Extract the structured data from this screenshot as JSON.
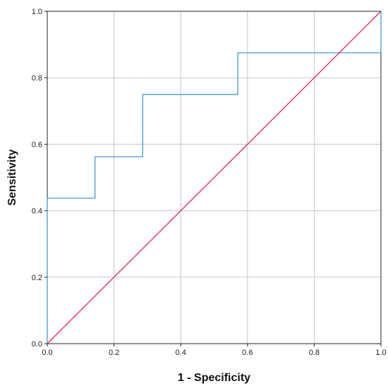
{
  "chart_data": {
    "type": "line",
    "xlabel": "1 - Specificity",
    "ylabel": "Sensitivity",
    "xlim": [
      0.0,
      1.0
    ],
    "ylim": [
      0.0,
      1.0
    ],
    "grid": true,
    "x_ticks": [
      "0.0",
      "0.2",
      "0.4",
      "0.6",
      "0.8",
      "1.0"
    ],
    "y_ticks": [
      "0.0",
      "0.2",
      "0.4",
      "0.6",
      "0.8",
      "1.0"
    ],
    "series": [
      {
        "color": "#3a9fd6",
        "style": "step",
        "x": [
          0.0,
          0.0,
          0.143,
          0.143,
          0.286,
          0.286,
          0.571,
          0.571,
          1.0,
          1.0
        ],
        "y": [
          0.0,
          0.4375,
          0.4375,
          0.5625,
          0.5625,
          0.75,
          0.75,
          0.875,
          0.875,
          1.0
        ]
      },
      {
        "color": "#e0245e",
        "style": "reference",
        "x": [
          0.0,
          1.0
        ],
        "y": [
          0.0,
          1.0
        ]
      }
    ]
  }
}
